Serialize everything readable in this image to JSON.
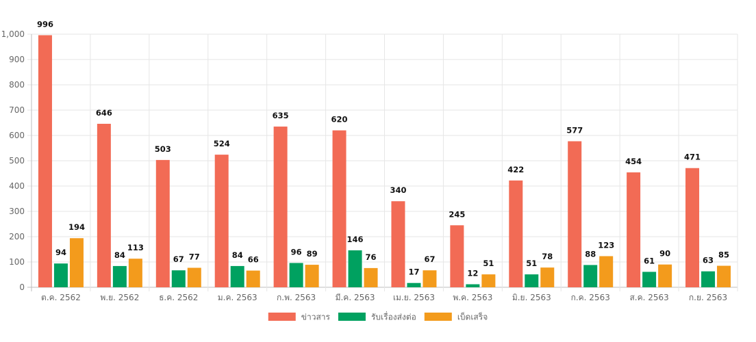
{
  "chart_data": {
    "type": "bar",
    "categories": [
      "ต.ค. 2562",
      "พ.ย. 2562",
      "ธ.ค. 2562",
      "ม.ค. 2563",
      "ก.พ. 2563",
      "มี.ค. 2563",
      "เม.ย. 2563",
      "พ.ค. 2563",
      "มิ.ย. 2563",
      "ก.ค. 2563",
      "ส.ค. 2563",
      "ก.ย. 2563"
    ],
    "series": [
      {
        "name": "ข่าวสาร",
        "color": "#f26b55",
        "values": [
          996,
          646,
          503,
          524,
          635,
          620,
          340,
          245,
          422,
          577,
          454,
          471
        ]
      },
      {
        "name": "รับเรื่องส่งต่อ",
        "color": "#00a160",
        "values": [
          94,
          84,
          67,
          84,
          96,
          146,
          17,
          12,
          51,
          88,
          61,
          63
        ]
      },
      {
        "name": "เบ็ดเสร็จ",
        "color": "#f39b1c",
        "values": [
          194,
          113,
          77,
          66,
          89,
          76,
          67,
          51,
          78,
          123,
          90,
          85
        ]
      }
    ],
    "y_ticks": [
      "0",
      "100",
      "200",
      "300",
      "400",
      "500",
      "600",
      "700",
      "800",
      "900",
      "1,000"
    ],
    "ylim": [
      0,
      1000
    ],
    "grid": true,
    "legend_position": "bottom",
    "show_data_labels": true
  }
}
